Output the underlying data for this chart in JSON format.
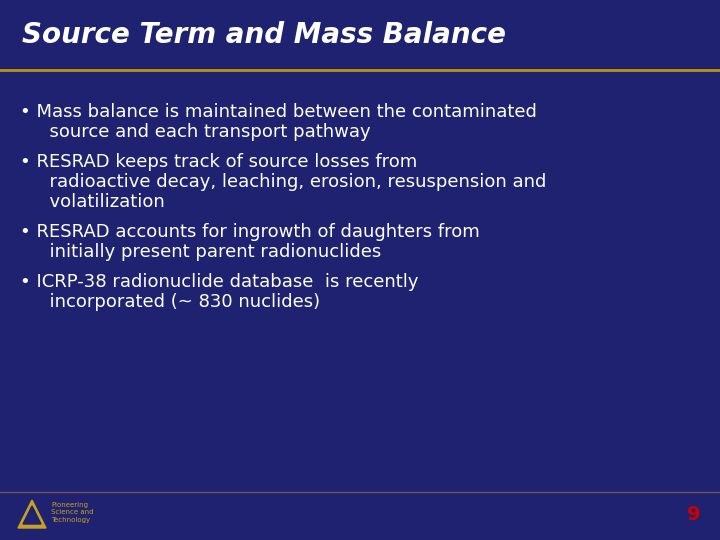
{
  "bg_color": "#1e2270",
  "title": "Source Term and Mass Balance",
  "title_color": "#ffffff",
  "title_fontsize": 20,
  "title_style": "italic",
  "title_weight": "bold",
  "divider_color_top": "#b8960c",
  "divider_color_bottom": "#7a5050",
  "bullet_color": "#ffffff",
  "bullet_fontsize": 13,
  "bullet_line1": [
    "Mass balance is maintained between the contaminated",
    "  source and each transport pathway"
  ],
  "bullet_line2": [
    "RESRAD keeps track of source losses from",
    "  radioactive decay, leaching, erosion, resuspension and",
    "  volatilization"
  ],
  "bullet_line3": [
    "RESRAD accounts for ingrowth of daughters from",
    "  initially present parent radionuclides"
  ],
  "bullet_line4": [
    "ICRP-38 radionuclide database  is recently",
    "  incorporated (~ 830 nuclides)"
  ],
  "footer_text_small": "Pioneering\nScience and\nTechnology",
  "footer_text_small_color": "#c8a020",
  "footer_text_small_fontsize": 5,
  "page_number": "9",
  "page_number_color": "#cc0000",
  "page_number_fontsize": 14
}
